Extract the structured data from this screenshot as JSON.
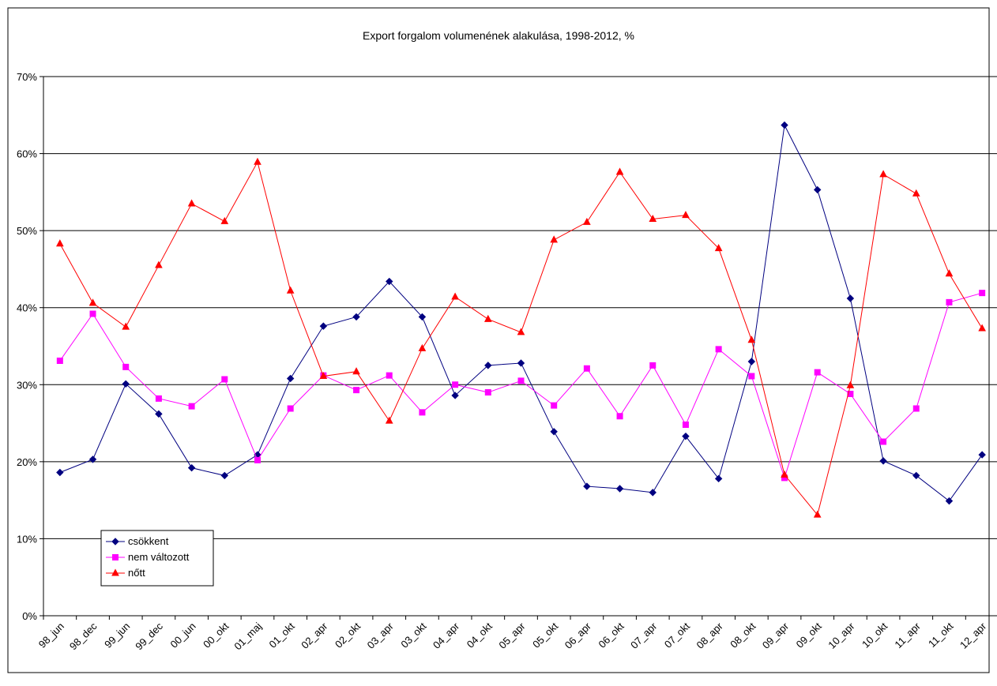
{
  "chart_data": {
    "type": "line",
    "title": "Export forgalom volumenének alakulása, 1998-2012, %",
    "categories": [
      "98_jun",
      "98_dec",
      "99_jun",
      "99_dec",
      "00_jun",
      "00_okt",
      "01_maj",
      "01_okt",
      "02_apr",
      "02_okt",
      "03_apr",
      "03_okt",
      "04_apr",
      "04_okt",
      "05_apr",
      "05_okt",
      "06_apr",
      "06_okt",
      "07_apr",
      "07_okt",
      "08_apr",
      "08_okt",
      "09_apr",
      "09_okt",
      "10_apr",
      "10_okt",
      "11_apr",
      "11_okt",
      "12_apr"
    ],
    "series": [
      {
        "name": "csökkent",
        "color": "#000080",
        "marker": "diamond",
        "values": [
          18.6,
          20.3,
          30.1,
          26.2,
          19.2,
          18.2,
          20.9,
          30.8,
          37.6,
          38.8,
          43.4,
          38.8,
          28.6,
          32.5,
          32.8,
          23.9,
          16.8,
          16.5,
          16.0,
          23.3,
          17.8,
          33.0,
          63.7,
          55.3,
          41.2,
          20.1,
          18.2,
          14.9,
          20.9
        ]
      },
      {
        "name": "nem változott",
        "color": "#ff00ff",
        "marker": "square",
        "values": [
          33.1,
          39.2,
          32.3,
          28.2,
          27.2,
          30.7,
          20.2,
          26.9,
          31.2,
          29.3,
          31.2,
          26.4,
          30.0,
          29.0,
          30.5,
          27.3,
          32.1,
          25.9,
          32.5,
          24.8,
          34.6,
          31.1,
          17.9,
          31.6,
          28.8,
          22.6,
          26.9,
          40.7,
          41.9
        ]
      },
      {
        "name": "nőtt",
        "color": "#ff0000",
        "marker": "triangle",
        "values": [
          48.3,
          40.6,
          37.5,
          45.5,
          53.5,
          51.2,
          58.9,
          42.2,
          31.1,
          31.7,
          25.3,
          34.7,
          41.4,
          38.5,
          36.8,
          48.8,
          51.1,
          57.6,
          51.5,
          52.0,
          47.7,
          35.8,
          18.3,
          13.1,
          29.9,
          57.3,
          54.8,
          44.4,
          37.3
        ]
      }
    ],
    "ylim": [
      0,
      70
    ],
    "yticks": [
      {
        "value": 0,
        "label": "0%"
      },
      {
        "value": 10,
        "label": "10%"
      },
      {
        "value": 20,
        "label": "20%"
      },
      {
        "value": 30,
        "label": "30%"
      },
      {
        "value": 40,
        "label": "40%"
      },
      {
        "value": 50,
        "label": "50%"
      },
      {
        "value": 60,
        "label": "60%"
      },
      {
        "value": 70,
        "label": "70%"
      }
    ],
    "grid": true,
    "legend": "lower-left"
  }
}
